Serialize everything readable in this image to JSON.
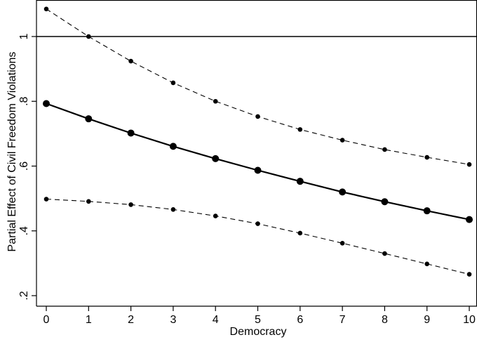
{
  "chart_data": {
    "type": "line",
    "xlabel": "Democracy",
    "ylabel": "Partial Effect of Civil Freedom Violations",
    "xlim": [
      0,
      10
    ],
    "ylim": [
      0.2,
      1.1
    ],
    "x_ticks": [
      0,
      1,
      2,
      3,
      4,
      5,
      6,
      7,
      8,
      9,
      10
    ],
    "x_tick_labels": [
      "0",
      "1",
      "2",
      "3",
      "4",
      "5",
      "6",
      "7",
      "8",
      "9",
      "10"
    ],
    "y_ticks": [
      0.2,
      0.4,
      0.6,
      0.8,
      1.0
    ],
    "y_tick_labels": [
      ".2",
      ".4",
      ".6",
      ".8",
      "1"
    ],
    "reference_line_y": 1.0,
    "grid": false,
    "x": [
      0,
      1,
      2,
      3,
      4,
      5,
      6,
      7,
      8,
      9,
      10
    ],
    "series": [
      {
        "role": "estimate",
        "style": "solid",
        "values": [
          0.793,
          0.746,
          0.702,
          0.661,
          0.623,
          0.587,
          0.553,
          0.52,
          0.49,
          0.462,
          0.435
        ]
      },
      {
        "role": "upper-ci",
        "style": "dashed",
        "values": [
          1.085,
          1.0,
          0.924,
          0.857,
          0.8,
          0.753,
          0.713,
          0.68,
          0.651,
          0.627,
          0.605
        ]
      },
      {
        "role": "lower-ci",
        "style": "dashed",
        "values": [
          0.498,
          0.491,
          0.481,
          0.466,
          0.446,
          0.422,
          0.393,
          0.362,
          0.33,
          0.298,
          0.266
        ]
      }
    ],
    "colors": {
      "line": "#000000",
      "background": "#ffffff"
    }
  }
}
